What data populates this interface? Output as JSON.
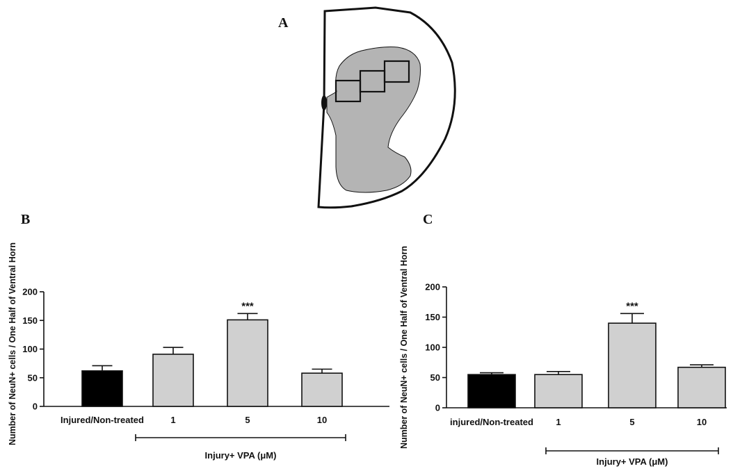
{
  "panels": {
    "a": {
      "letter": "A"
    },
    "b": {
      "letter": "B"
    },
    "c": {
      "letter": "C"
    }
  },
  "colors": {
    "control_bar": "#000000",
    "treated_bar": "#d0d0d0",
    "gray_matter": "#b4b4b4",
    "outline": "#111111"
  },
  "chart_data": [
    {
      "panel": "B",
      "type": "bar",
      "ylabel": "Number of NeuN+ cells / One Half of Ventral Horn",
      "ylim": [
        0,
        200
      ],
      "yticks": [
        "0",
        "50",
        "100",
        "150",
        "200"
      ],
      "categories": [
        "Injured/Non-treated",
        "1",
        "5",
        "10"
      ],
      "values": [
        62,
        91,
        151,
        58
      ],
      "errors": [
        9,
        12,
        11,
        7
      ],
      "annotations": [
        "",
        "",
        "***",
        ""
      ],
      "group_label": "Injury+ VPA (μM)"
    },
    {
      "panel": "C",
      "type": "bar",
      "ylabel": "Number of NeuN+ cells / One Half of Ventral Horn",
      "ylim": [
        0,
        200
      ],
      "yticks": [
        "0",
        "50",
        "100",
        "150",
        "200"
      ],
      "categories": [
        "injured/Non-treated",
        "1",
        "5",
        "10"
      ],
      "values": [
        55,
        55,
        140,
        67
      ],
      "errors": [
        3,
        5,
        16,
        4
      ],
      "annotations": [
        "",
        "",
        "***",
        ""
      ],
      "group_label": "Injury+ VPA (μM)"
    }
  ]
}
